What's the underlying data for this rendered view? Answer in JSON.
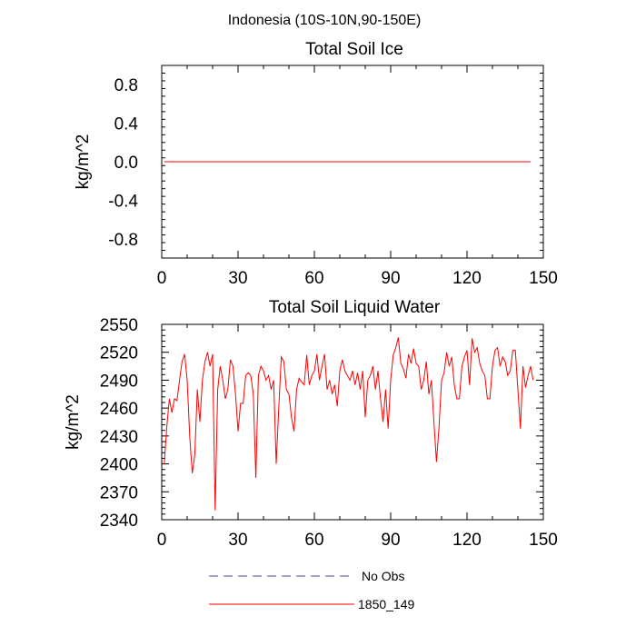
{
  "figure": {
    "title": "Indonesia (10S-10N,90-150E)"
  },
  "chart_data": [
    {
      "type": "line",
      "title": "Total Soil Ice",
      "xlabel": "",
      "ylabel": "kg/m^2",
      "xlim": [
        0,
        150
      ],
      "ylim": [
        -1.0,
        1.0
      ],
      "xticks": [
        0,
        30,
        60,
        90,
        120,
        150
      ],
      "yticks": [
        -0.8,
        -0.4,
        0.0,
        0.4,
        0.8
      ],
      "ytick_labels": [
        "-0.8",
        "-0.4",
        "0.0",
        "0.4",
        "0.8"
      ],
      "grid": false,
      "series": [
        {
          "name": "1850_149",
          "color": "#ff0000",
          "x_start": 1,
          "values": [
            0,
            0,
            0,
            0,
            0,
            0,
            0,
            0,
            0,
            0,
            0,
            0,
            0,
            0,
            0,
            0,
            0,
            0,
            0,
            0,
            0,
            0,
            0,
            0,
            0,
            0,
            0,
            0,
            0,
            0,
            0,
            0,
            0,
            0,
            0,
            0,
            0,
            0,
            0,
            0,
            0,
            0,
            0,
            0,
            0,
            0,
            0,
            0,
            0,
            0,
            0,
            0,
            0,
            0,
            0,
            0,
            0,
            0,
            0,
            0,
            0,
            0,
            0,
            0,
            0,
            0,
            0,
            0,
            0,
            0,
            0,
            0,
            0,
            0,
            0,
            0,
            0,
            0,
            0,
            0,
            0,
            0,
            0,
            0,
            0,
            0,
            0,
            0,
            0,
            0,
            0,
            0,
            0,
            0,
            0,
            0,
            0,
            0,
            0,
            0,
            0,
            0,
            0,
            0,
            0,
            0,
            0,
            0,
            0,
            0,
            0,
            0,
            0,
            0,
            0,
            0,
            0,
            0,
            0,
            0,
            0,
            0,
            0,
            0,
            0,
            0,
            0,
            0,
            0,
            0,
            0,
            0,
            0,
            0,
            0,
            0,
            0,
            0,
            0,
            0,
            0,
            0,
            0,
            0,
            0
          ]
        }
      ]
    },
    {
      "type": "line",
      "title": "Total Soil Liquid Water",
      "xlabel": "",
      "ylabel": "kg/m^2",
      "xlim": [
        0,
        150
      ],
      "ylim": [
        2340,
        2550
      ],
      "xticks": [
        0,
        30,
        60,
        90,
        120,
        150
      ],
      "yticks": [
        2340,
        2370,
        2400,
        2430,
        2460,
        2490,
        2520,
        2550
      ],
      "ytick_labels": [
        "2340",
        "2370",
        "2400",
        "2430",
        "2460",
        "2490",
        "2520",
        "2550"
      ],
      "grid": false,
      "series": [
        {
          "name": "1850_149",
          "color": "#ff0000",
          "x_start": 1,
          "values": [
            2400,
            2440,
            2470,
            2455,
            2470,
            2468,
            2490,
            2510,
            2518,
            2490,
            2430,
            2390,
            2410,
            2480,
            2445,
            2490,
            2510,
            2520,
            2505,
            2518,
            2350,
            2480,
            2505,
            2490,
            2470,
            2480,
            2512,
            2505,
            2475,
            2435,
            2465,
            2465,
            2495,
            2498,
            2495,
            2475,
            2385,
            2495,
            2505,
            2500,
            2490,
            2495,
            2480,
            2490,
            2400,
            2460,
            2515,
            2510,
            2480,
            2475,
            2450,
            2435,
            2480,
            2492,
            2488,
            2485,
            2517,
            2485,
            2495,
            2500,
            2518,
            2490,
            2505,
            2518,
            2480,
            2490,
            2475,
            2485,
            2462,
            2500,
            2512,
            2500,
            2495,
            2490,
            2500,
            2485,
            2498,
            2480,
            2500,
            2450,
            2490,
            2495,
            2505,
            2480,
            2500,
            2470,
            2445,
            2480,
            2438,
            2490,
            2517,
            2525,
            2536,
            2508,
            2502,
            2492,
            2518,
            2508,
            2524,
            2508,
            2505,
            2480,
            2490,
            2510,
            2475,
            2490,
            2445,
            2402,
            2440,
            2490,
            2498,
            2520,
            2505,
            2515,
            2485,
            2470,
            2470,
            2505,
            2515,
            2522,
            2485,
            2535,
            2520,
            2525,
            2508,
            2500,
            2495,
            2470,
            2470,
            2505,
            2522,
            2525,
            2505,
            2515,
            2510,
            2495,
            2500,
            2522,
            2522,
            2480,
            2438,
            2505,
            2482,
            2495,
            2505,
            2490
          ]
        }
      ]
    }
  ],
  "legend": {
    "entries": [
      {
        "label": "No Obs",
        "color": "#4a4aa8",
        "style": "dashed"
      },
      {
        "label": "1850_149",
        "color": "#ff0000",
        "style": "solid"
      }
    ]
  }
}
